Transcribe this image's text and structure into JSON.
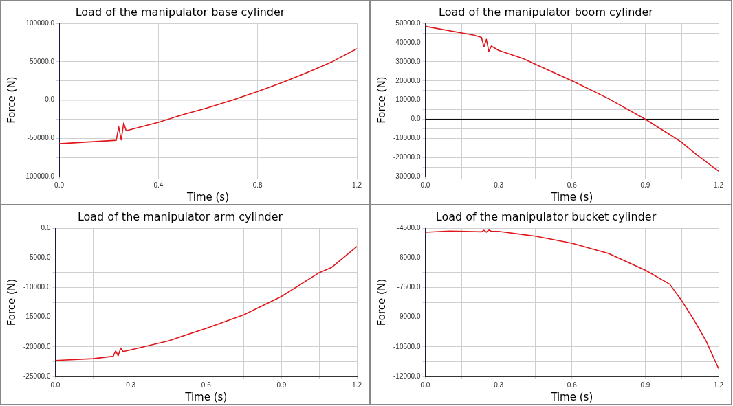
{
  "chart_data": [
    {
      "type": "line",
      "title": "Load of the manipulator base cylinder",
      "xlabel": "Time (s)",
      "ylabel": "Force (N)",
      "grid": true,
      "marker": "none",
      "line_style": "solid",
      "xlim": [
        0,
        1.2
      ],
      "ylim": [
        -100000,
        100000
      ],
      "xticks": [
        {
          "value": 0,
          "label": "0.0"
        },
        {
          "value": 0.2,
          "label": null
        },
        {
          "value": 0.4,
          "label": "0.4"
        },
        {
          "value": 0.6,
          "label": null
        },
        {
          "value": 0.8,
          "label": "0.8"
        },
        {
          "value": 1.0,
          "label": null
        },
        {
          "value": 1.2,
          "label": "1.2"
        }
      ],
      "yticks": [
        {
          "value": -100000,
          "label": "-100000.0"
        },
        {
          "value": -75000,
          "label": null
        },
        {
          "value": -50000,
          "label": "-50000.0"
        },
        {
          "value": -25000,
          "label": null
        },
        {
          "value": 0,
          "label": "0.0"
        },
        {
          "value": 25000,
          "label": null
        },
        {
          "value": 50000,
          "label": "50000.0"
        },
        {
          "value": 75000,
          "label": null
        },
        {
          "value": 100000,
          "label": "100000.0"
        }
      ],
      "ref_lines": [
        {
          "axis": "y",
          "value": 0,
          "color": "#000000"
        }
      ],
      "series": [
        {
          "color": "#e0161b",
          "x": [
            0,
            0.23,
            0.24,
            0.25,
            0.26,
            0.27,
            0.4,
            0.5,
            0.6,
            0.7,
            0.8,
            0.9,
            1.0,
            1.1,
            1.2
          ],
          "values": [
            -57000,
            -52500,
            -35000,
            -52000,
            -30000,
            -40000,
            -29000,
            -19000,
            -10000,
            0,
            11000,
            23000,
            36000,
            50000,
            67000
          ]
        }
      ]
    },
    {
      "type": "line",
      "title": "Load of the manipulator boom cylinder",
      "xlabel": "Time (s)",
      "ylabel": "Force (N)",
      "grid": true,
      "marker": "none",
      "line_style": "solid",
      "xlim": [
        0,
        1.2
      ],
      "ylim": [
        -30000,
        50000
      ],
      "xticks": [
        {
          "value": 0,
          "label": "0.0"
        },
        {
          "value": 0.15,
          "label": null
        },
        {
          "value": 0.3,
          "label": "0.3"
        },
        {
          "value": 0.45,
          "label": null
        },
        {
          "value": 0.6,
          "label": "0.6"
        },
        {
          "value": 0.75,
          "label": null
        },
        {
          "value": 0.9,
          "label": "0.9"
        },
        {
          "value": 1.05,
          "label": null
        },
        {
          "value": 1.2,
          "label": "1.2"
        }
      ],
      "yticks": [
        {
          "value": -30000,
          "label": "-30000.0"
        },
        {
          "value": -25000,
          "label": null
        },
        {
          "value": -20000,
          "label": "-20000.0"
        },
        {
          "value": -15000,
          "label": null
        },
        {
          "value": -10000,
          "label": "-10000.0"
        },
        {
          "value": -5000,
          "label": null
        },
        {
          "value": 0,
          "label": "0.0"
        },
        {
          "value": 5000,
          "label": null
        },
        {
          "value": 10000,
          "label": "10000.0"
        },
        {
          "value": 15000,
          "label": null
        },
        {
          "value": 20000,
          "label": "20000.0"
        },
        {
          "value": 25000,
          "label": null
        },
        {
          "value": 30000,
          "label": "30000.0"
        },
        {
          "value": 35000,
          "label": null
        },
        {
          "value": 40000,
          "label": "40000.0"
        },
        {
          "value": 45000,
          "label": null
        },
        {
          "value": 50000,
          "label": "50000.0"
        }
      ],
      "ref_lines": [
        {
          "axis": "y",
          "value": 0,
          "color": "#000000"
        }
      ],
      "series": [
        {
          "color": "#e0161b",
          "x": [
            0,
            0.2,
            0.23,
            0.24,
            0.25,
            0.26,
            0.27,
            0.3,
            0.4,
            0.5,
            0.6,
            0.75,
            0.9,
            1.0,
            1.05,
            1.1,
            1.2
          ],
          "values": [
            48500,
            43900,
            42700,
            37800,
            41700,
            35400,
            38200,
            36000,
            31700,
            25800,
            20100,
            10700,
            0,
            -8000,
            -12200,
            -17500,
            -27200
          ]
        }
      ]
    },
    {
      "type": "line",
      "title": "Load of the manipulator arm cylinder",
      "xlabel": "Time (s)",
      "ylabel": "Force (N)",
      "grid": true,
      "marker": "none",
      "line_style": "solid",
      "xlim": [
        0,
        1.2
      ],
      "ylim": [
        -25000,
        0
      ],
      "xticks": [
        {
          "value": 0,
          "label": "0.0"
        },
        {
          "value": 0.15,
          "label": null
        },
        {
          "value": 0.3,
          "label": "0.3"
        },
        {
          "value": 0.45,
          "label": null
        },
        {
          "value": 0.6,
          "label": "0.6"
        },
        {
          "value": 0.75,
          "label": null
        },
        {
          "value": 0.9,
          "label": "0.9"
        },
        {
          "value": 1.05,
          "label": null
        },
        {
          "value": 1.2,
          "label": "1.2"
        }
      ],
      "yticks": [
        {
          "value": -25000,
          "label": "-25000.0"
        },
        {
          "value": -22500,
          "label": null
        },
        {
          "value": -20000,
          "label": "-20000.0"
        },
        {
          "value": -17500,
          "label": null
        },
        {
          "value": -15000,
          "label": "-15000.0"
        },
        {
          "value": -12500,
          "label": null
        },
        {
          "value": -10000,
          "label": "-10000.0"
        },
        {
          "value": -7500,
          "label": null
        },
        {
          "value": -5000,
          "label": "-5000.0"
        },
        {
          "value": -2500,
          "label": null
        },
        {
          "value": 0,
          "label": "0.0"
        }
      ],
      "series": [
        {
          "color": "#e0161b",
          "x": [
            0,
            0.15,
            0.23,
            0.24,
            0.25,
            0.26,
            0.27,
            0.3,
            0.45,
            0.6,
            0.75,
            0.9,
            1.05,
            1.1,
            1.2
          ],
          "values": [
            -22300,
            -22000,
            -21600,
            -20700,
            -21500,
            -20200,
            -20800,
            -20500,
            -19000,
            -16900,
            -14600,
            -11500,
            -7500,
            -6600,
            -3100
          ]
        }
      ]
    },
    {
      "type": "line",
      "title": "Load of the manipulator bucket cylinder",
      "xlabel": "Time (s)",
      "ylabel": "Force (N)",
      "grid": true,
      "marker": "none",
      "line_style": "solid",
      "xlim": [
        0,
        1.2
      ],
      "ylim": [
        -12000,
        -4500
      ],
      "xticks": [
        {
          "value": 0,
          "label": "0.0"
        },
        {
          "value": 0.15,
          "label": null
        },
        {
          "value": 0.3,
          "label": "0.3"
        },
        {
          "value": 0.45,
          "label": null
        },
        {
          "value": 0.6,
          "label": "0.6"
        },
        {
          "value": 0.75,
          "label": null
        },
        {
          "value": 0.9,
          "label": "0.9"
        },
        {
          "value": 1.05,
          "label": null
        },
        {
          "value": 1.2,
          "label": "1.2"
        }
      ],
      "yticks": [
        {
          "value": -12000,
          "label": "-12000.0"
        },
        {
          "value": -11250,
          "label": null
        },
        {
          "value": -10500,
          "label": "-10500.0"
        },
        {
          "value": -9750,
          "label": null
        },
        {
          "value": -9000,
          "label": "-9000.0"
        },
        {
          "value": -8250,
          "label": null
        },
        {
          "value": -7500,
          "label": "-7500.0"
        },
        {
          "value": -6750,
          "label": null
        },
        {
          "value": -6000,
          "label": "-6000.0"
        },
        {
          "value": -5250,
          "label": null
        },
        {
          "value": -4500,
          "label": "-4500.0"
        }
      ],
      "series": [
        {
          "color": "#e0161b",
          "x": [
            0,
            0.1,
            0.23,
            0.24,
            0.25,
            0.26,
            0.27,
            0.3,
            0.45,
            0.6,
            0.75,
            0.9,
            1.0,
            1.05,
            1.1,
            1.15,
            1.2
          ],
          "values": [
            -4700,
            -4640,
            -4680,
            -4600,
            -4700,
            -4590,
            -4650,
            -4660,
            -4900,
            -5260,
            -5780,
            -6620,
            -7330,
            -8180,
            -9150,
            -10230,
            -11600
          ]
        }
      ]
    }
  ]
}
